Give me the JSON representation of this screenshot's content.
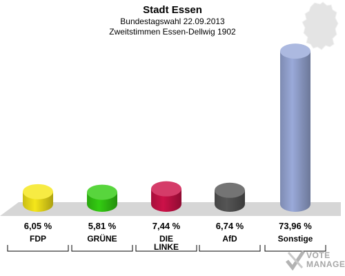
{
  "header": {
    "title": "Stadt Essen",
    "subtitle": "Bundestagswahl 22.09.2013",
    "subtitle2": "Zweitstimmen Essen-Dellwig 1902"
  },
  "logo": {
    "line1": "VOTE",
    "line2": "MANAGER"
  },
  "chart_data": {
    "type": "bar",
    "title": "Stadt Essen",
    "subtitle": "Bundestagswahl 22.09.2013 / Zweitstimmen Essen-Dellwig 1902",
    "ylim": [
      0,
      75
    ],
    "grid": false,
    "legend": "none",
    "categories": [
      "FDP",
      "GRÜNE",
      "DIE LINKE",
      "AfD",
      "Sonstige"
    ],
    "category_lines": [
      [
        "FDP"
      ],
      [
        "GRÜNE"
      ],
      [
        "DIE",
        "LINKE"
      ],
      [
        "AfD"
      ],
      [
        "Sonstige"
      ]
    ],
    "values": [
      6.05,
      5.81,
      7.44,
      6.74,
      73.96
    ],
    "value_labels": [
      "6,05 %",
      "5,81 %",
      "7,44 %",
      "6,74 %",
      "73,96 %"
    ],
    "colors": [
      "#f5e61a",
      "#33cc12",
      "#cc1148",
      "#555555",
      "#9aaad9"
    ]
  }
}
